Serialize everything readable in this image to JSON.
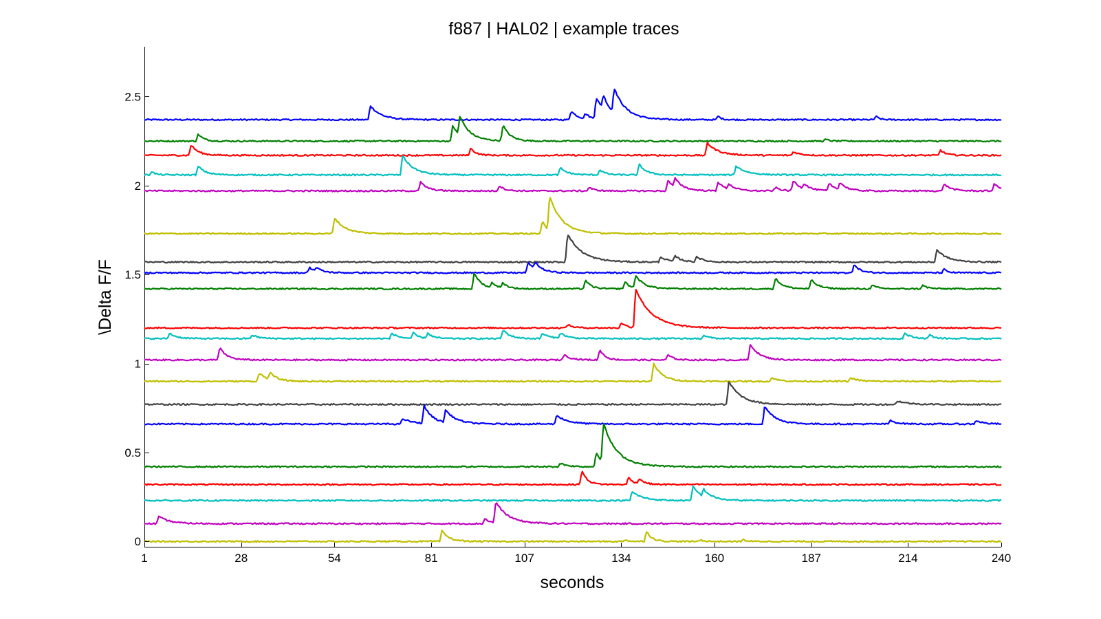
{
  "chart_data": {
    "type": "line",
    "title": "f887 | HAL02 | example traces",
    "xlabel": "seconds",
    "ylabel": "\\Delta F/F",
    "xlim": [
      1,
      240
    ],
    "ylim": [
      -0.03,
      2.78
    ],
    "x_ticks": [
      1,
      28,
      54,
      81,
      107,
      134,
      160,
      187,
      214,
      240
    ],
    "y_ticks": [
      0,
      0.5,
      1,
      1.5,
      2,
      2.5
    ],
    "grid": false,
    "legend": "none",
    "series": [
      {
        "color": "#0000ff",
        "baseline": 2.37,
        "peaks": [
          [
            64,
            0.08,
            3
          ],
          [
            120,
            0.05,
            2
          ],
          [
            124,
            0.03,
            1.5
          ],
          [
            127,
            0.12,
            3
          ],
          [
            129,
            0.08,
            2
          ],
          [
            132,
            0.14,
            3.5
          ],
          [
            161,
            0.02,
            1
          ],
          [
            205,
            0.02,
            1
          ]
        ]
      },
      {
        "color": "#008000",
        "baseline": 2.25,
        "peaks": [
          [
            16,
            0.04,
            1.5
          ],
          [
            87,
            0.09,
            2
          ],
          [
            89,
            0.11,
            3
          ],
          [
            101,
            0.09,
            2
          ],
          [
            191,
            0.01,
            1
          ]
        ]
      },
      {
        "color": "#ff0000",
        "baseline": 2.17,
        "peaks": [
          [
            14,
            0.06,
            2
          ],
          [
            92,
            0.04,
            1.5
          ],
          [
            158,
            0.07,
            3
          ],
          [
            182,
            0.02,
            2
          ],
          [
            223,
            0.03,
            1.5
          ]
        ]
      },
      {
        "color": "#00bfbf",
        "baseline": 2.06,
        "peaks": [
          [
            3,
            0.02,
            1
          ],
          [
            16,
            0.05,
            2
          ],
          [
            73,
            0.11,
            3
          ],
          [
            117,
            0.04,
            2
          ],
          [
            128,
            0.03,
            1.5
          ],
          [
            139,
            0.06,
            2
          ],
          [
            166,
            0.05,
            3
          ]
        ]
      },
      {
        "color": "#bf00bf",
        "baseline": 1.97,
        "peaks": [
          [
            78,
            0.05,
            2
          ],
          [
            100,
            0.03,
            1.5
          ],
          [
            125,
            0.02,
            1.5
          ],
          [
            147,
            0.06,
            2
          ],
          [
            149,
            0.05,
            2.5
          ],
          [
            161,
            0.05,
            2
          ],
          [
            164,
            0.03,
            2
          ],
          [
            177,
            0.02,
            1.5
          ],
          [
            182,
            0.06,
            2
          ],
          [
            185,
            0.03,
            2
          ],
          [
            192,
            0.04,
            2
          ],
          [
            195,
            0.04,
            2
          ],
          [
            224,
            0.04,
            2
          ],
          [
            238,
            0.04,
            2
          ]
        ]
      },
      {
        "color": "#bfbf00",
        "baseline": 1.73,
        "peaks": [
          [
            54,
            0.09,
            3
          ],
          [
            112,
            0.07,
            1.5
          ],
          [
            114,
            0.2,
            3.5
          ]
        ]
      },
      {
        "color": "#404040",
        "baseline": 1.57,
        "peaks": [
          [
            119,
            0.16,
            4
          ],
          [
            145,
            0.03,
            2
          ],
          [
            149,
            0.03,
            2
          ],
          [
            155,
            0.03,
            2
          ],
          [
            222,
            0.07,
            3
          ]
        ]
      },
      {
        "color": "#0000ff",
        "baseline": 1.51,
        "peaks": [
          [
            47,
            0.03,
            2
          ],
          [
            49,
            0.02,
            1.5
          ],
          [
            108,
            0.06,
            2
          ],
          [
            110,
            0.04,
            2
          ],
          [
            199,
            0.05,
            1.5
          ],
          [
            224,
            0.02,
            1
          ]
        ]
      },
      {
        "color": "#008000",
        "baseline": 1.42,
        "peaks": [
          [
            93,
            0.09,
            2
          ],
          [
            98,
            0.03,
            1.5
          ],
          [
            101,
            0.03,
            1.5
          ],
          [
            124,
            0.05,
            1.5
          ],
          [
            135,
            0.04,
            1.5
          ],
          [
            138,
            0.07,
            2.5
          ],
          [
            177,
            0.06,
            2
          ],
          [
            187,
            0.05,
            2
          ],
          [
            204,
            0.02,
            1.5
          ],
          [
            218,
            0.02,
            1.5
          ]
        ]
      },
      {
        "color": "#ff0000",
        "baseline": 1.2,
        "peaks": [
          [
            119,
            0.02,
            1.5
          ],
          [
            134,
            0.03,
            1.5
          ],
          [
            138,
            0.22,
            4.5
          ]
        ]
      },
      {
        "color": "#00bfbf",
        "baseline": 1.14,
        "peaks": [
          [
            8,
            0.03,
            2
          ],
          [
            31,
            0.02,
            2
          ],
          [
            70,
            0.03,
            2
          ],
          [
            76,
            0.03,
            1.5
          ],
          [
            80,
            0.03,
            1.5
          ],
          [
            101,
            0.05,
            2
          ],
          [
            112,
            0.03,
            2
          ],
          [
            117,
            0.03,
            2
          ],
          [
            157,
            0.02,
            1.5
          ],
          [
            213,
            0.03,
            2
          ],
          [
            220,
            0.02,
            1.5
          ]
        ]
      },
      {
        "color": "#bf00bf",
        "baseline": 1.02,
        "peaks": [
          [
            22,
            0.07,
            2
          ],
          [
            118,
            0.03,
            2
          ],
          [
            128,
            0.06,
            1.5
          ],
          [
            147,
            0.03,
            1.5
          ],
          [
            170,
            0.09,
            2.5
          ]
        ]
      },
      {
        "color": "#bfbf00",
        "baseline": 0.9,
        "peaks": [
          [
            33,
            0.05,
            2
          ],
          [
            36,
            0.04,
            2
          ],
          [
            143,
            0.1,
            2.5
          ],
          [
            176,
            0.02,
            2
          ],
          [
            198,
            0.02,
            2
          ]
        ]
      },
      {
        "color": "#404040",
        "baseline": 0.77,
        "peaks": [
          [
            164,
            0.13,
            3.5
          ],
          [
            211,
            0.02,
            3
          ]
        ]
      },
      {
        "color": "#0000ff",
        "baseline": 0.66,
        "peaks": [
          [
            73,
            0.03,
            3
          ],
          [
            79,
            0.1,
            2.5
          ],
          [
            85,
            0.07,
            3
          ],
          [
            116,
            0.05,
            3
          ],
          [
            174,
            0.1,
            3
          ],
          [
            209,
            0.02,
            2
          ],
          [
            233,
            0.02,
            2
          ]
        ]
      },
      {
        "color": "#008000",
        "baseline": 0.42,
        "peaks": [
          [
            117,
            0.02,
            2
          ],
          [
            127,
            0.08,
            2
          ],
          [
            129,
            0.22,
            4
          ]
        ]
      },
      {
        "color": "#ff0000",
        "baseline": 0.32,
        "peaks": [
          [
            123,
            0.08,
            1.5
          ],
          [
            136,
            0.04,
            1.5
          ],
          [
            139,
            0.03,
            1.5
          ]
        ]
      },
      {
        "color": "#00bfbf",
        "baseline": 0.23,
        "peaks": [
          [
            137,
            0.05,
            3
          ],
          [
            154,
            0.08,
            2.5
          ],
          [
            157,
            0.04,
            2.5
          ]
        ]
      },
      {
        "color": "#bf00bf",
        "baseline": 0.1,
        "peaks": [
          [
            5,
            0.04,
            3
          ],
          [
            96,
            0.03,
            1.5
          ],
          [
            99,
            0.12,
            3.5
          ]
        ]
      },
      {
        "color": "#bfbf00",
        "baseline": 0.0,
        "peaks": [
          [
            84,
            0.06,
            2
          ],
          [
            135,
            0.01,
            1
          ],
          [
            141,
            0.06,
            1.5
          ],
          [
            156,
            0.01,
            1
          ],
          [
            168,
            0.01,
            1
          ]
        ]
      }
    ]
  }
}
